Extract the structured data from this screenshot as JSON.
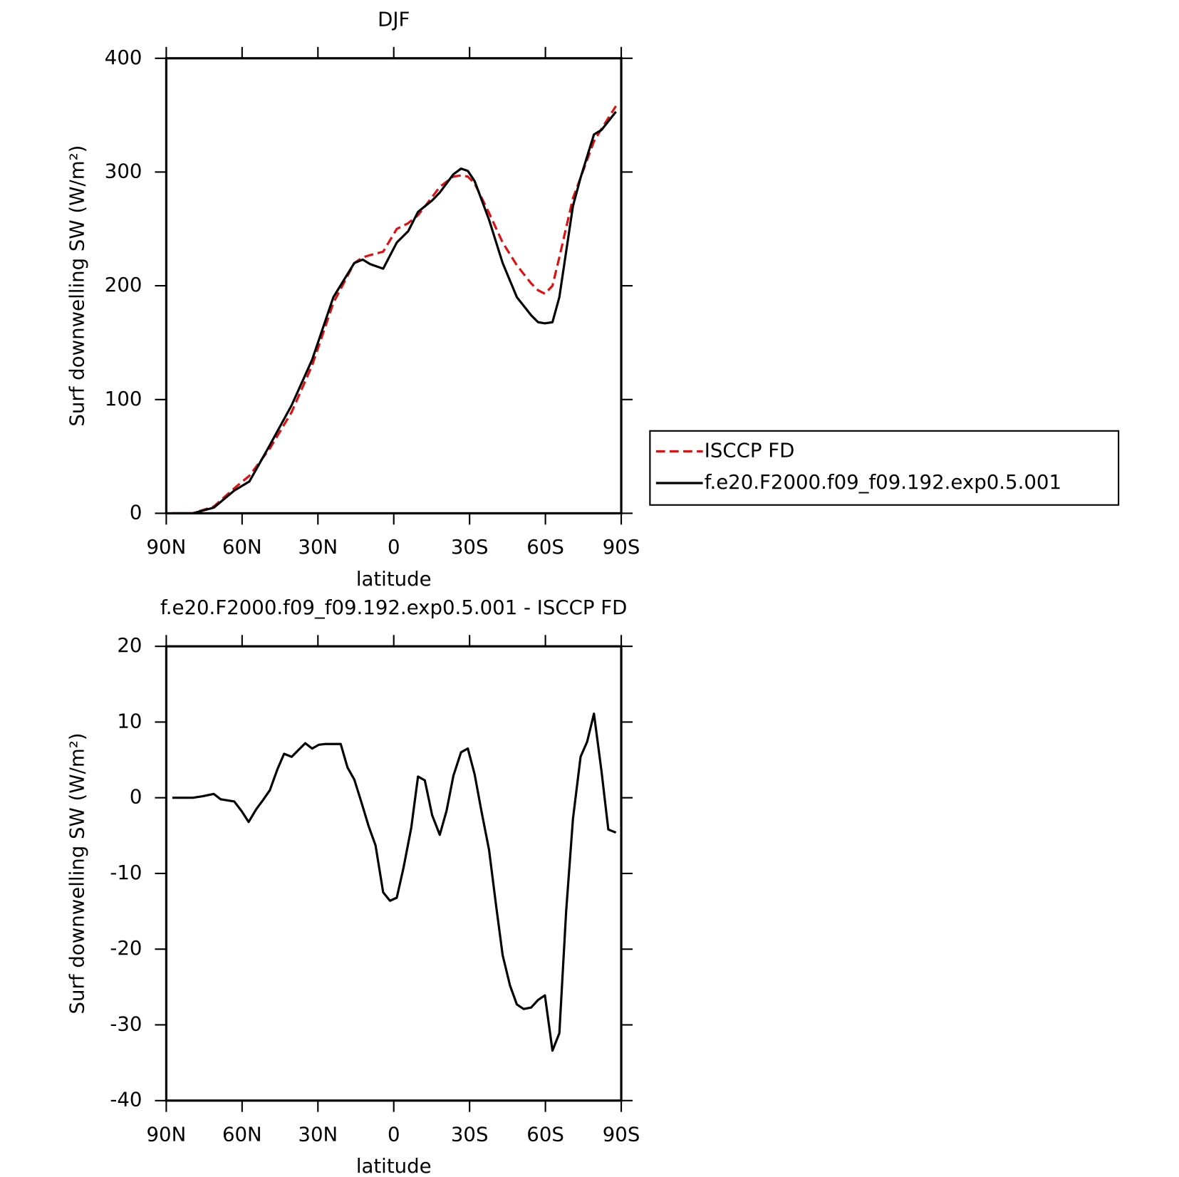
{
  "chart_data": [
    {
      "type": "line",
      "title": "DJF",
      "xlabel": "latitude",
      "ylabel": "Surf downwelling SW (W/m²)",
      "x": [
        87.6,
        79.5,
        71.2,
        63.1,
        57.1,
        49.0,
        40.4,
        32.3,
        23.9,
        15.6,
        12.3,
        9.3,
        4.2,
        -1.2,
        -5.7,
        -9.6,
        -15.2,
        -18.2,
        -23.6,
        -26.6,
        -29.3,
        -32.0,
        -37.7,
        -43.1,
        -48.7,
        -54.4,
        -57.1,
        -59.8,
        -62.8,
        -65.5,
        -70.9,
        -73.9,
        -79.2,
        -82.2,
        -87.9
      ],
      "series": [
        {
          "name": "ISCCP FD",
          "color": "#e01010",
          "dash": true,
          "values": [
            0,
            0,
            6,
            22,
            33,
            57,
            89,
            130,
            185,
            220,
            225,
            227,
            230,
            250,
            255,
            262,
            278,
            287,
            296,
            297,
            296,
            290,
            264,
            238,
            218,
            202,
            196,
            193,
            200,
            225,
            277,
            295,
            327,
            338,
            358
          ]
        },
        {
          "name": "f.e20.F2000.f09_f09.192.exp0.5.001",
          "color": "#000000",
          "dash": false,
          "values": [
            0,
            0,
            5,
            20,
            28,
            60,
            95,
            135,
            190,
            220,
            223,
            219,
            215,
            238,
            248,
            265,
            275,
            282,
            298,
            303,
            301,
            292,
            258,
            220,
            190,
            174,
            168,
            167,
            168,
            190,
            270,
            295,
            333,
            337,
            353
          ]
        }
      ],
      "xlim": [
        90,
        -90
      ],
      "xticks": [
        {
          "value": 90,
          "label": "90N"
        },
        {
          "value": 60,
          "label": "60N"
        },
        {
          "value": 30,
          "label": "30N"
        },
        0,
        {
          "value": -30,
          "label": "30S"
        },
        {
          "value": -60,
          "label": "60S"
        },
        {
          "value": -90,
          "label": "90S"
        }
      ],
      "ylim": [
        0,
        400
      ],
      "yticks": [
        0,
        100,
        200,
        300,
        400
      ],
      "legend": "right"
    },
    {
      "type": "line",
      "title": "f.e20.F2000.f09_f09.192.exp0.5.001 - ISCCP FD",
      "xlabel": "latitude",
      "ylabel": "Surf downwelling SW (W/m²)",
      "x": [
        87.6,
        79.5,
        75.6,
        71.2,
        68.5,
        63.1,
        60.1,
        57.4,
        54.4,
        51.7,
        49.0,
        46.0,
        43.4,
        40.4,
        35.0,
        32.3,
        29.6,
        26.9,
        23.9,
        21.0,
        18.3,
        15.6,
        12.9,
        9.9,
        7.2,
        4.2,
        1.5,
        -1.2,
        -3.9,
        -6.9,
        -9.6,
        -12.3,
        -15.2,
        -18.2,
        -20.9,
        -23.6,
        -26.6,
        -29.3,
        -32.0,
        -34.7,
        -37.7,
        -40.4,
        -43.1,
        -46.0,
        -48.7,
        -51.4,
        -54.4,
        -57.1,
        -59.8,
        -62.8,
        -65.5,
        -68.2,
        -70.9,
        -73.9,
        -76.5,
        -79.2,
        -82.2,
        -84.9,
        -87.9
      ],
      "series": [
        {
          "name": null,
          "color": "#000000",
          "dash": false,
          "values": [
            0,
            0,
            0.2,
            0.5,
            -0.2,
            -0.5,
            -1.8,
            -3.2,
            -1.5,
            -0.3,
            1,
            3.8,
            5.8,
            5.4,
            7.2,
            6.5,
            7,
            7.1,
            7.1,
            7.1,
            4,
            2.4,
            -0.5,
            -3.8,
            -6.3,
            -12.5,
            -13.6,
            -13.2,
            -9.2,
            -4,
            2.8,
            2.3,
            -2.3,
            -4.9,
            -1.7,
            2.9,
            6,
            6.5,
            3.1,
            -1.8,
            -6.9,
            -14,
            -20.8,
            -24.8,
            -27.3,
            -27.9,
            -27.7,
            -26.7,
            -26.1,
            -33.4,
            -31.1,
            -15,
            -2.8,
            5.4,
            7.4,
            11.1,
            3.5,
            -4.2,
            -4.6
          ]
        }
      ],
      "xlim": [
        90,
        -90
      ],
      "xticks": [
        {
          "value": 90,
          "label": "90N"
        },
        {
          "value": 60,
          "label": "60N"
        },
        {
          "value": 30,
          "label": "30N"
        },
        0,
        {
          "value": -30,
          "label": "30S"
        },
        {
          "value": -60,
          "label": "60S"
        },
        {
          "value": -90,
          "label": "90S"
        }
      ],
      "ylim": [
        -40,
        20
      ],
      "yticks": [
        -40,
        -30,
        -20,
        -10,
        0,
        10,
        20
      ]
    }
  ]
}
